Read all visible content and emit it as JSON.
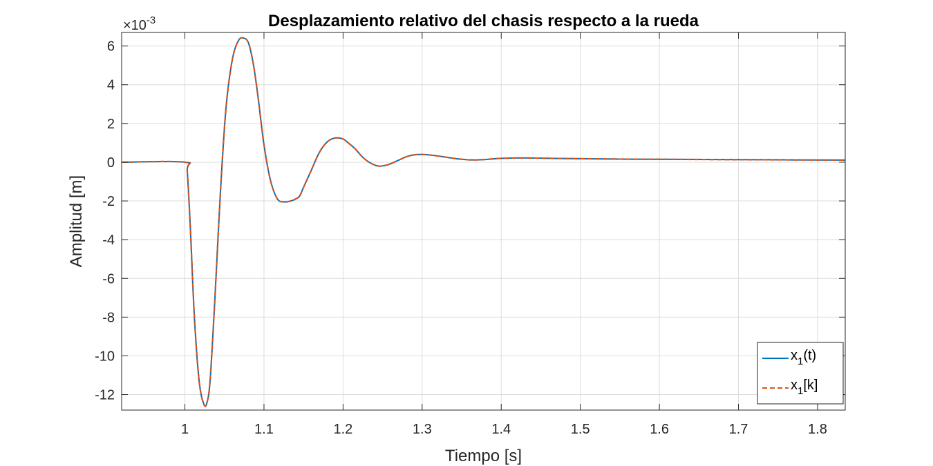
{
  "chart_data": {
    "type": "line",
    "title": "Desplazamiento relativo del chasis respecto a la rueda",
    "xlabel": "Tiempo [s]",
    "ylabel": "Amplitud [m]",
    "y_exponent_label": "×10",
    "y_exponent_power": "-3",
    "xlim": [
      0.92,
      1.835
    ],
    "ylim": [
      -12.8,
      6.7
    ],
    "y_units_multiplier": 0.001,
    "grid": true,
    "legend_position": "bottom-right",
    "x_ticks": [
      1,
      1.1,
      1.2,
      1.3,
      1.4,
      1.5,
      1.6,
      1.7,
      1.8
    ],
    "x_tick_labels": [
      "1",
      "1.1",
      "1.2",
      "1.3",
      "1.4",
      "1.5",
      "1.6",
      "1.7",
      "1.8"
    ],
    "y_ticks": [
      -12,
      -10,
      -8,
      -6,
      -4,
      -2,
      0,
      2,
      4,
      6
    ],
    "y_tick_labels": [
      "-12",
      "-10",
      "-8",
      "-6",
      "-4",
      "-2",
      "0",
      "2",
      "4",
      "6"
    ],
    "series": [
      {
        "name": "x",
        "name_sub": "1",
        "name_suffix": "(t)",
        "color": "#0072BD",
        "style": "solid",
        "x": [
          0.92,
          1.0,
          1.003,
          1.007,
          1.012,
          1.018,
          1.024,
          1.028,
          1.032,
          1.038,
          1.045,
          1.052,
          1.06,
          1.068,
          1.075,
          1.08,
          1.084,
          1.088,
          1.093,
          1.1,
          1.108,
          1.117,
          1.126,
          1.134,
          1.14,
          1.145,
          1.15,
          1.16,
          1.17,
          1.18,
          1.19,
          1.2,
          1.205,
          1.215,
          1.225,
          1.235,
          1.245,
          1.255,
          1.262,
          1.27,
          1.28,
          1.29,
          1.3,
          1.31,
          1.32,
          1.33,
          1.34,
          1.35,
          1.36,
          1.37,
          1.38,
          1.4,
          1.43,
          1.46,
          1.5,
          1.55,
          1.6,
          1.7,
          1.835
        ],
        "y": [
          0,
          0,
          -0.5,
          -3.5,
          -8,
          -11.3,
          -12.5,
          -12.4,
          -11.2,
          -7,
          -1.5,
          2.8,
          5.3,
          6.3,
          6.4,
          6.2,
          5.6,
          4.7,
          3.2,
          0.9,
          -0.9,
          -1.9,
          -2.05,
          -2.0,
          -1.9,
          -1.75,
          -1.3,
          -0.4,
          0.5,
          1.05,
          1.25,
          1.2,
          1.05,
          0.7,
          0.25,
          -0.05,
          -0.2,
          -0.15,
          -0.05,
          0.1,
          0.28,
          0.38,
          0.4,
          0.37,
          0.32,
          0.26,
          0.2,
          0.15,
          0.12,
          0.12,
          0.14,
          0.2,
          0.22,
          0.2,
          0.18,
          0.16,
          0.15,
          0.13,
          0.11
        ]
      },
      {
        "name": "x",
        "name_sub": "1",
        "name_suffix": "[k]",
        "color": "#D95319",
        "style": "dashed",
        "x": [
          0.92,
          1.0,
          1.003,
          1.007,
          1.012,
          1.018,
          1.024,
          1.028,
          1.032,
          1.038,
          1.045,
          1.052,
          1.06,
          1.068,
          1.075,
          1.08,
          1.084,
          1.088,
          1.093,
          1.1,
          1.108,
          1.117,
          1.126,
          1.134,
          1.14,
          1.145,
          1.15,
          1.16,
          1.17,
          1.18,
          1.19,
          1.2,
          1.205,
          1.215,
          1.225,
          1.235,
          1.245,
          1.255,
          1.262,
          1.27,
          1.28,
          1.29,
          1.3,
          1.31,
          1.32,
          1.33,
          1.34,
          1.35,
          1.36,
          1.37,
          1.38,
          1.4,
          1.43,
          1.46,
          1.5,
          1.55,
          1.6,
          1.7,
          1.835
        ],
        "y": [
          0,
          0,
          -0.5,
          -3.5,
          -8,
          -11.3,
          -12.5,
          -12.4,
          -11.2,
          -7,
          -1.5,
          2.8,
          5.3,
          6.3,
          6.4,
          6.2,
          5.6,
          4.7,
          3.2,
          0.9,
          -0.9,
          -1.9,
          -2.05,
          -2.0,
          -1.9,
          -1.75,
          -1.3,
          -0.4,
          0.5,
          1.05,
          1.25,
          1.2,
          1.05,
          0.7,
          0.25,
          -0.05,
          -0.2,
          -0.15,
          -0.05,
          0.1,
          0.28,
          0.38,
          0.4,
          0.37,
          0.32,
          0.26,
          0.2,
          0.15,
          0.12,
          0.12,
          0.14,
          0.2,
          0.22,
          0.2,
          0.18,
          0.16,
          0.15,
          0.13,
          0.11
        ]
      }
    ]
  }
}
